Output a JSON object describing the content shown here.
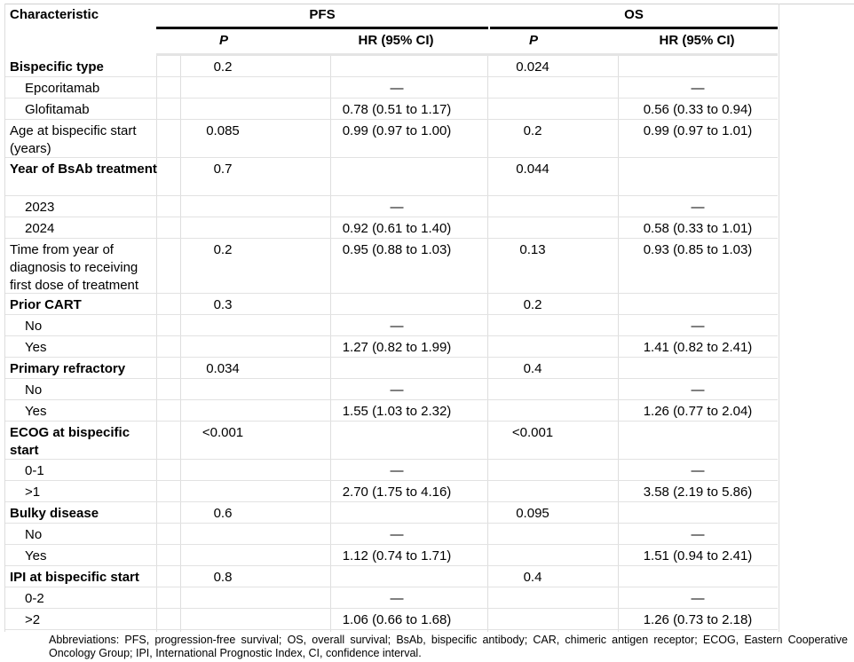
{
  "header": {
    "characteristic": "Characteristic",
    "pfs": "PFS",
    "os": "OS",
    "p": "P",
    "hr": "HR (95% CI)"
  },
  "rows": [
    {
      "label": "Bispecific type",
      "bold": true,
      "indent": false,
      "pfs_p": "0.2",
      "pfs_hr": "",
      "os_p": "0.024",
      "os_hr": ""
    },
    {
      "label": "Epcoritamab",
      "bold": false,
      "indent": true,
      "pfs_p": "",
      "pfs_hr": "—",
      "os_p": "",
      "os_hr": "—"
    },
    {
      "label": "Glofitamab",
      "bold": false,
      "indent": true,
      "pfs_p": "",
      "pfs_hr": "0.78 (0.51 to 1.17)",
      "os_p": "",
      "os_hr": "0.56 (0.33 to 0.94)"
    },
    {
      "label": "Age at bispecific start (years)",
      "bold": false,
      "indent": false,
      "pfs_p": "0.085",
      "pfs_hr": "0.99 (0.97 to 1.00)",
      "os_p": "0.2",
      "os_hr": "0.99 (0.97 to 1.01)"
    },
    {
      "label": "Year of BsAb treatment",
      "bold": true,
      "indent": false,
      "pfs_p": "0.7",
      "pfs_hr": "",
      "os_p": "0.044",
      "os_hr": ""
    },
    {
      "label": "2023",
      "bold": false,
      "indent": true,
      "pfs_p": "",
      "pfs_hr": "—",
      "os_p": "",
      "os_hr": "—"
    },
    {
      "label": "2024",
      "bold": false,
      "indent": true,
      "pfs_p": "",
      "pfs_hr": "0.92 (0.61 to 1.40)",
      "os_p": "",
      "os_hr": "0.58 (0.33 to 1.01)"
    },
    {
      "label": "Time from year of diagnosis to receiving first dose of treatment",
      "bold": false,
      "indent": false,
      "pfs_p": "0.2",
      "pfs_hr": "0.95 (0.88 to 1.03)",
      "os_p": "0.13",
      "os_hr": "0.93 (0.85 to 1.03)"
    },
    {
      "label": "Prior CART",
      "bold": true,
      "indent": false,
      "pfs_p": "0.3",
      "pfs_hr": "",
      "os_p": "0.2",
      "os_hr": ""
    },
    {
      "label": "No",
      "bold": false,
      "indent": true,
      "pfs_p": "",
      "pfs_hr": "—",
      "os_p": "",
      "os_hr": "—"
    },
    {
      "label": "Yes",
      "bold": false,
      "indent": true,
      "pfs_p": "",
      "pfs_hr": "1.27 (0.82 to 1.99)",
      "os_p": "",
      "os_hr": "1.41 (0.82 to 2.41)"
    },
    {
      "label": "Primary refractory",
      "bold": true,
      "indent": false,
      "pfs_p": "0.034",
      "pfs_hr": "",
      "os_p": "0.4",
      "os_hr": ""
    },
    {
      "label": "No",
      "bold": false,
      "indent": true,
      "pfs_p": "",
      "pfs_hr": "—",
      "os_p": "",
      "os_hr": "—"
    },
    {
      "label": "Yes",
      "bold": false,
      "indent": true,
      "pfs_p": "",
      "pfs_hr": "1.55 (1.03 to 2.32)",
      "os_p": "",
      "os_hr": "1.26 (0.77 to 2.04)"
    },
    {
      "label": "ECOG at bispecific start",
      "bold": true,
      "indent": false,
      "pfs_p": "<0.001",
      "pfs_hr": "",
      "os_p": "<0.001",
      "os_hr": ""
    },
    {
      "label": "0-1",
      "bold": false,
      "indent": true,
      "pfs_p": "",
      "pfs_hr": "—",
      "os_p": "",
      "os_hr": "—"
    },
    {
      "label": ">1",
      "bold": false,
      "indent": true,
      "pfs_p": "",
      "pfs_hr": "2.70 (1.75 to 4.16)",
      "os_p": "",
      "os_hr": "3.58 (2.19 to 5.86)"
    },
    {
      "label": "Bulky disease",
      "bold": true,
      "indent": false,
      "pfs_p": "0.6",
      "pfs_hr": "",
      "os_p": "0.095",
      "os_hr": ""
    },
    {
      "label": "No",
      "bold": false,
      "indent": true,
      "pfs_p": "",
      "pfs_hr": "—",
      "os_p": "",
      "os_hr": "—"
    },
    {
      "label": "Yes",
      "bold": false,
      "indent": true,
      "pfs_p": "",
      "pfs_hr": "1.12 (0.74 to 1.71)",
      "os_p": "",
      "os_hr": "1.51 (0.94 to 2.41)"
    },
    {
      "label": "IPI at bispecific start",
      "bold": true,
      "indent": false,
      "pfs_p": "0.8",
      "pfs_hr": "",
      "os_p": "0.4",
      "os_hr": ""
    },
    {
      "label": "0-2",
      "bold": false,
      "indent": true,
      "pfs_p": "",
      "pfs_hr": "—",
      "os_p": "",
      "os_hr": "—"
    },
    {
      "label": ">2",
      "bold": false,
      "indent": true,
      "pfs_p": "",
      "pfs_hr": "1.06 (0.66 to 1.68)",
      "os_p": "",
      "os_hr": "1.26 (0.73 to 2.18)"
    }
  ],
  "footnote": "Abbreviations: PFS, progression-free survival; OS, overall survival; BsAb, bispecific antibody; CAR, chimeric antigen receptor; ECOG, Eastern Cooperative Oncology Group; IPI, International Prognostic Index, CI, confidence interval."
}
